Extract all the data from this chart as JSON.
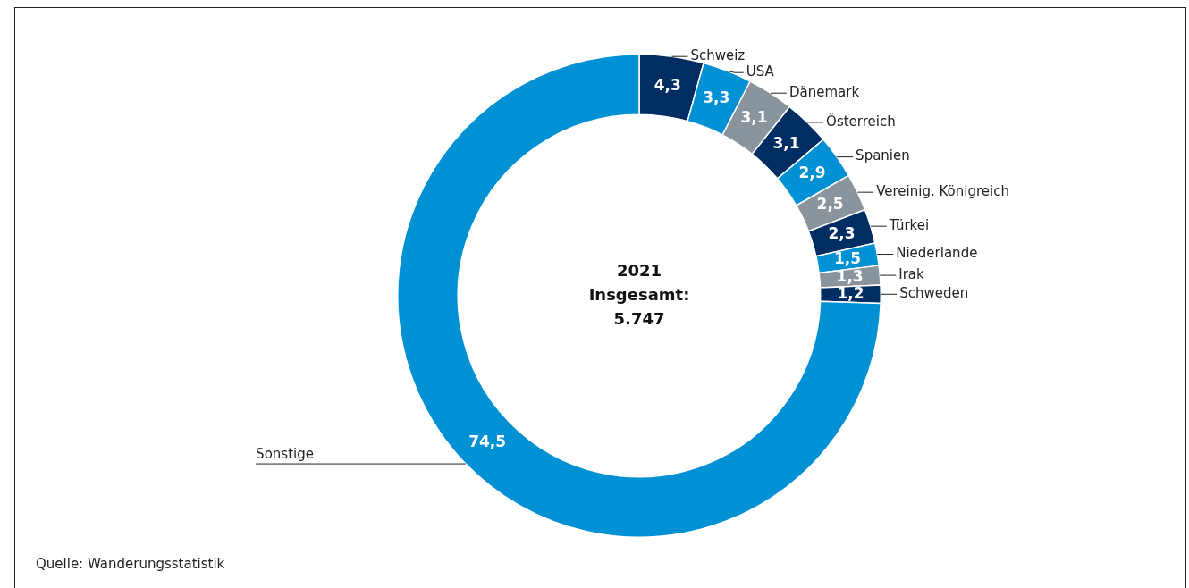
{
  "chart_data": {
    "type": "donut",
    "categories": [
      "Schweiz",
      "USA",
      "Dänemark",
      "Österreich",
      "Spanien",
      "Vereinig. Königreich",
      "Türkei",
      "Niederlande",
      "Irak",
      "Schweden",
      "Sonstige"
    ],
    "values": [
      4.3,
      3.3,
      3.1,
      3.1,
      2.9,
      2.5,
      2.3,
      1.5,
      1.3,
      1.2,
      74.5
    ],
    "colors": [
      "#002d62",
      "#0090d4",
      "#8a949d",
      "#002d62",
      "#0090d4",
      "#8a949d",
      "#002d62",
      "#0090d4",
      "#8a949d",
      "#002d62",
      "#0090d4"
    ],
    "value_labels": [
      "4,3",
      "3,3",
      "3,1",
      "3,1",
      "2,9",
      "2,5",
      "2,3",
      "1,5",
      "1,3",
      "1,2",
      "74,5"
    ],
    "annotations": [
      "2021",
      "Insgesamt:",
      "5.747",
      "Quelle: Wanderungsstatistik"
    ]
  }
}
